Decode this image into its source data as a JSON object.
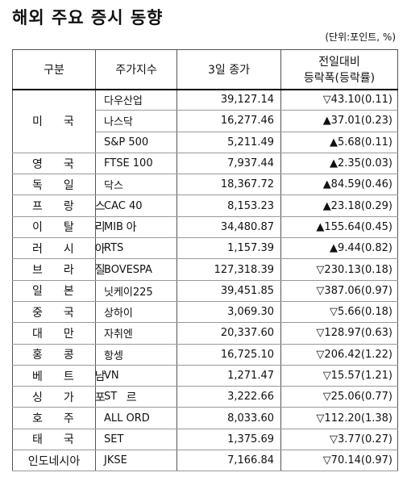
{
  "title": "해외 주요 증시 동향",
  "unit": "(단위:포인트, %)",
  "headers": {
    "region": "구분",
    "index": "주가지수",
    "close": "3일 종가",
    "change_line1": "전일대비",
    "change_line2": "등락폭(등락률)"
  },
  "rows": [
    {
      "region": "미국",
      "index": "다우산업",
      "close": "39,127.14",
      "change": "▽43.10(0.11)"
    },
    {
      "region": "",
      "index": "나스닥",
      "close": "16,277.46",
      "change": "▲37.01(0.23)"
    },
    {
      "region": "",
      "index": "S&P 500",
      "close": "5,211.49",
      "change": "▲5.68(0.11)"
    },
    {
      "region": "영국",
      "index": "FTSE 100",
      "close": "7,937.44",
      "change": "▲2.35(0.03)"
    },
    {
      "region": "독일",
      "index": "닥스",
      "close": "18,367.72",
      "change": "▲84.59(0.46)"
    },
    {
      "region": "프랑스",
      "index": "CAC 40",
      "close": "8,153.23",
      "change": "▲23.18(0.29)"
    },
    {
      "region": "이탈리아",
      "index": "MIB",
      "close": "34,480.87",
      "change": "▲155.64(0.45)"
    },
    {
      "region": "러시아",
      "index": "RTS",
      "close": "1,157.39",
      "change": "▲9.44(0.82)"
    },
    {
      "region": "브라질",
      "index": "BOVESPA",
      "close": "127,318.39",
      "change": "▽230.13(0.18)"
    },
    {
      "region": "일본",
      "index": "닛케이225",
      "close": "39,451.85",
      "change": "▽387.06(0.97)"
    },
    {
      "region": "중국",
      "index": "상하이",
      "close": "3,069.30",
      "change": "▽5.66(0.18)"
    },
    {
      "region": "대만",
      "index": "자취엔",
      "close": "20,337.60",
      "change": "▽128.97(0.63)"
    },
    {
      "region": "홍콩",
      "index": "항셍",
      "close": "16,725.10",
      "change": "▽206.42(1.22)"
    },
    {
      "region": "베트남",
      "index": "VN",
      "close": "1,271.47",
      "change": "▽15.57(1.21)"
    },
    {
      "region": "싱가포르",
      "index": "ST",
      "close": "3,222.66",
      "change": "▽25.06(0.77)"
    },
    {
      "region": "호주",
      "index": "ALL ORD",
      "close": "8,033.60",
      "change": "▽112.20(1.38)"
    },
    {
      "region": "태국",
      "index": "SET",
      "close": "1,375.69",
      "change": "▽3.77(0.27)"
    },
    {
      "region": "인도네시아",
      "index": "JKSE",
      "close": "7,166.84",
      "change": "▽70.14(0.97)"
    }
  ]
}
